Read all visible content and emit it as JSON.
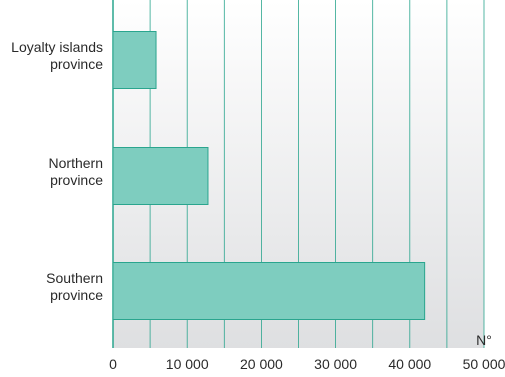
{
  "chart_data": {
    "type": "bar",
    "orientation": "horizontal",
    "categories": [
      [
        "Loyalty islands",
        "province"
      ],
      [
        "Northern",
        "province"
      ],
      [
        "Southern",
        "province"
      ]
    ],
    "values": [
      5800,
      12800,
      42000
    ],
    "xlim": [
      0,
      50000
    ],
    "xticks": [
      0,
      10000,
      20000,
      30000,
      40000,
      50000
    ],
    "xtick_labels": [
      "0",
      "10 000",
      "20 000",
      "30 000",
      "40 000",
      "50 000"
    ],
    "xlabel": "N°",
    "grid": true,
    "colors": {
      "bar_fill": "#7ecdbf",
      "bar_stroke": "#2aa58e",
      "plot_bg_top": "#ffffff",
      "plot_bg_bottom": "#dedfe1",
      "grid": "#2aa58e"
    }
  }
}
